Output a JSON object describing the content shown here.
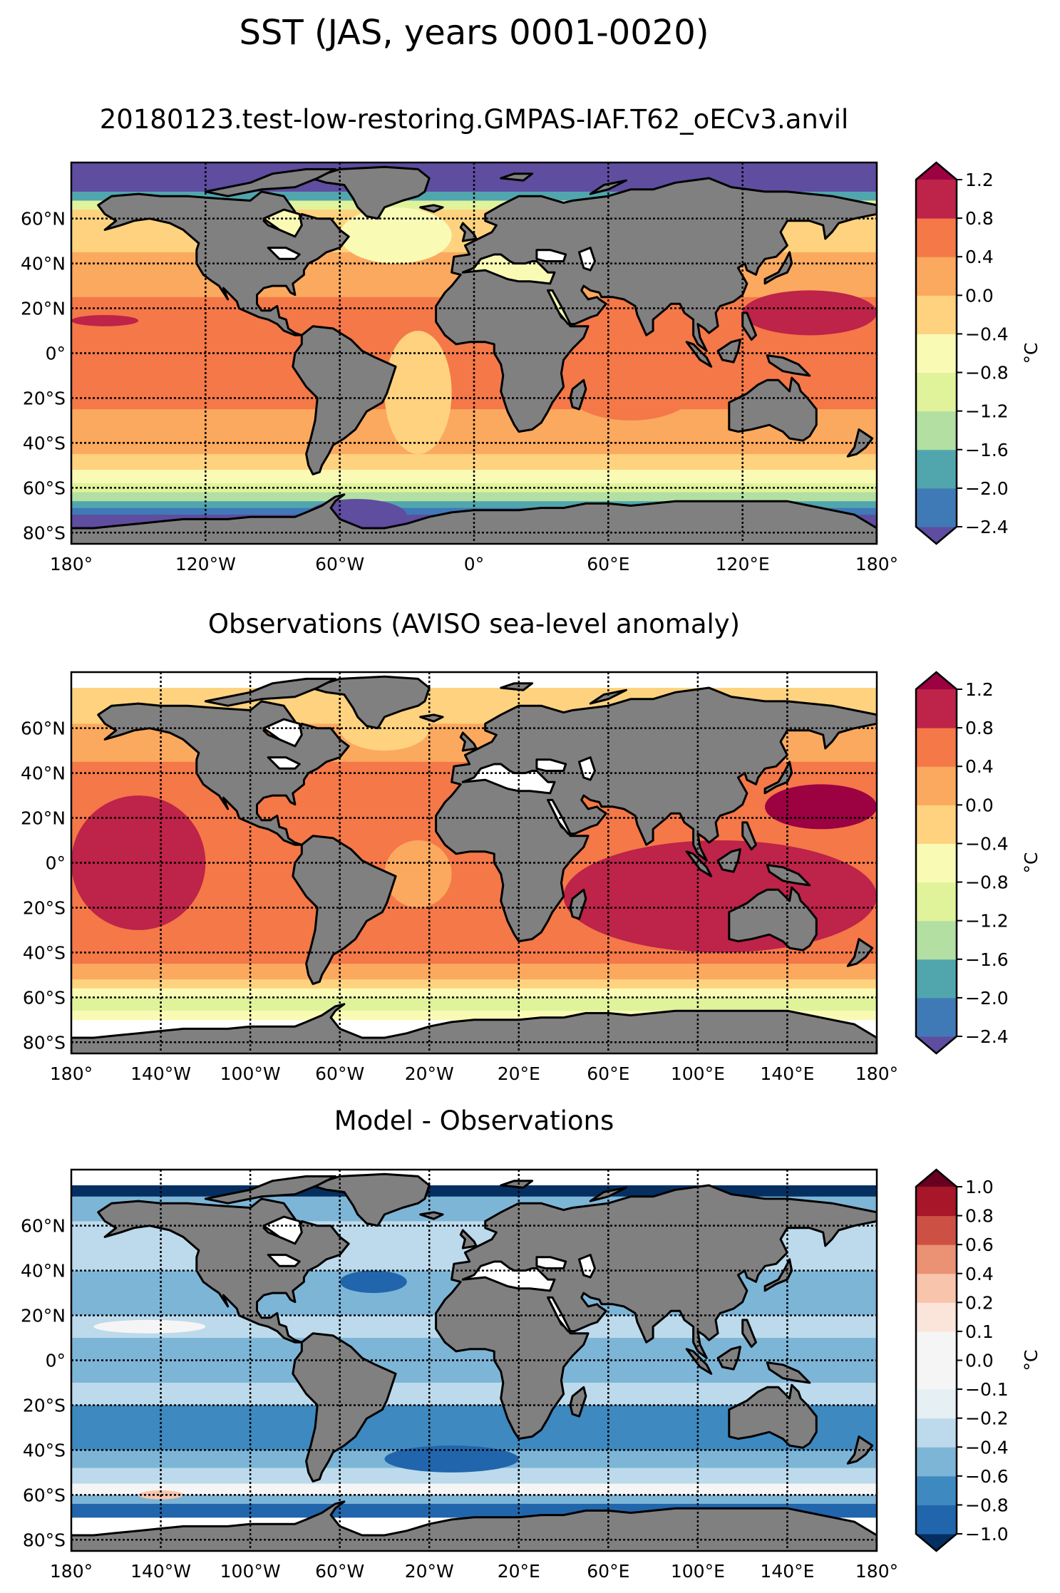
{
  "figure": {
    "title": "SST (JAS, years 0001-0020)"
  },
  "chart_data": [
    {
      "type": "heatmap",
      "panel": "model",
      "title": "20180123.test-low-restoring.GMPAS-IAF.T62_oECv3.anvil",
      "projection": "PlateCarree",
      "xlim": [
        -180,
        180
      ],
      "ylim": [
        -85,
        85
      ],
      "grid": true,
      "xticks": [
        -180,
        -120,
        -60,
        0,
        60,
        120,
        180
      ],
      "xtick_labels": [
        "180°",
        "120°W",
        "60°W",
        "0°",
        "60°E",
        "120°E",
        "180°"
      ],
      "yticks": [
        60,
        40,
        20,
        0,
        -20,
        -40,
        -60,
        -80
      ],
      "ytick_labels": [
        "60°N",
        "40°N",
        "20°N",
        "0°",
        "20°S",
        "40°S",
        "60°S",
        "80°S"
      ],
      "colorbar": {
        "label": "°C",
        "levels": [
          -2.4,
          -2.0,
          -1.6,
          -1.2,
          -0.8,
          -0.4,
          0.0,
          0.4,
          0.8,
          1.2
        ],
        "tick_labels": [
          "−2.4",
          "−2.0",
          "−1.6",
          "−1.2",
          "−0.8",
          "−0.4",
          "0.0",
          "0.4",
          "0.8",
          "1.2"
        ],
        "extend": "both",
        "colors": [
          "#3f7ab6",
          "#51a6ae",
          "#b3dfa2",
          "#e0f39b",
          "#f9fbb5",
          "#fed27f",
          "#fba95f",
          "#f47848",
          "#be2349"
        ],
        "under_color": "#5f4da0",
        "over_color": "#9c0142"
      },
      "zonal_bands": [
        {
          "lat": [
            72,
            85
          ],
          "value": -2.6
        },
        {
          "lat": [
            68,
            72
          ],
          "value": -1.8
        },
        {
          "lat": [
            64,
            68
          ],
          "value": -0.9
        },
        {
          "lat": [
            45,
            64
          ],
          "value": -0.2
        },
        {
          "lat": [
            25,
            45
          ],
          "value": 0.2
        },
        {
          "lat": [
            -25,
            25
          ],
          "value": 0.5
        },
        {
          "lat": [
            -45,
            -25
          ],
          "value": 0.2
        },
        {
          "lat": [
            -52,
            -45
          ],
          "value": -0.2
        },
        {
          "lat": [
            -58,
            -52
          ],
          "value": -0.6
        },
        {
          "lat": [
            -62,
            -58
          ],
          "value": -1.0
        },
        {
          "lat": [
            -66,
            -62
          ],
          "value": -1.4
        },
        {
          "lat": [
            -69,
            -66
          ],
          "value": -1.8
        },
        {
          "lat": [
            -72,
            -69
          ],
          "value": -2.2
        },
        {
          "lat": [
            -85,
            -72
          ],
          "value": -2.6
        }
      ],
      "features": [
        {
          "lon": [
            -180,
            -150
          ],
          "lat": [
            12,
            17
          ],
          "value": 0.9
        },
        {
          "lon": [
            120,
            180
          ],
          "lat": [
            8,
            28
          ],
          "value": 0.9
        },
        {
          "lon": [
            140,
            180
          ],
          "lat": [
            0,
            8
          ],
          "value": 0.6
        },
        {
          "lon": [
            40,
            100
          ],
          "lat": [
            -30,
            0
          ],
          "value": 0.5
        },
        {
          "lon": [
            -60,
            -10
          ],
          "lat": [
            40,
            65
          ],
          "value": -0.6
        },
        {
          "lon": [
            -40,
            -10
          ],
          "lat": [
            -45,
            10
          ],
          "value": -0.2
        },
        {
          "lon": [
            -75,
            -30
          ],
          "lat": [
            -80,
            -65
          ],
          "value": -2.6
        }
      ],
      "missing_color": "#ffffff"
    },
    {
      "type": "heatmap",
      "panel": "observations",
      "title": "Observations (AVISO sea-level anomaly)",
      "projection": "PlateCarree",
      "xlim": [
        -180,
        180
      ],
      "ylim": [
        -85,
        85
      ],
      "grid": true,
      "xticks": [
        -180,
        -140,
        -100,
        -60,
        -20,
        20,
        60,
        100,
        140,
        180
      ],
      "xtick_labels": [
        "180°",
        "140°W",
        "100°W",
        "60°W",
        "20°W",
        "20°E",
        "60°E",
        "100°E",
        "140°E",
        "180°"
      ],
      "yticks": [
        60,
        40,
        20,
        0,
        -20,
        -40,
        -60,
        -80
      ],
      "ytick_labels": [
        "60°N",
        "40°N",
        "20°N",
        "0°",
        "20°S",
        "40°S",
        "60°S",
        "80°S"
      ],
      "colorbar": {
        "label": "°C",
        "levels": [
          -2.4,
          -2.0,
          -1.6,
          -1.2,
          -0.8,
          -0.4,
          0.0,
          0.4,
          0.8,
          1.2
        ],
        "tick_labels": [
          "−2.4",
          "−2.0",
          "−1.6",
          "−1.2",
          "−0.8",
          "−0.4",
          "0.0",
          "0.4",
          "0.8",
          "1.2"
        ],
        "extend": "both",
        "colors": [
          "#3f7ab6",
          "#51a6ae",
          "#b3dfa2",
          "#e0f39b",
          "#f9fbb5",
          "#fed27f",
          "#fba95f",
          "#f47848",
          "#be2349"
        ],
        "under_color": "#5f4da0",
        "over_color": "#9c0142"
      },
      "zonal_bands": [
        {
          "lat": [
            78,
            85
          ],
          "value": null
        },
        {
          "lat": [
            62,
            78
          ],
          "value": -0.2
        },
        {
          "lat": [
            45,
            62
          ],
          "value": 0.2
        },
        {
          "lat": [
            35,
            45
          ],
          "value": 0.6
        },
        {
          "lat": [
            -35,
            35
          ],
          "value": 0.6
        },
        {
          "lat": [
            -45,
            -35
          ],
          "value": 0.6
        },
        {
          "lat": [
            -52,
            -45
          ],
          "value": 0.2
        },
        {
          "lat": [
            -56,
            -52
          ],
          "value": -0.2
        },
        {
          "lat": [
            -60,
            -56
          ],
          "value": -0.6
        },
        {
          "lat": [
            -66,
            -60
          ],
          "value": -1.0
        },
        {
          "lat": [
            -70,
            -66
          ],
          "value": -0.6
        },
        {
          "lat": [
            -85,
            -70
          ],
          "value": null
        }
      ],
      "features": [
        {
          "lon": [
            -180,
            -120
          ],
          "lat": [
            -30,
            30
          ],
          "value": 0.9
        },
        {
          "lon": [
            130,
            180
          ],
          "lat": [
            15,
            35
          ],
          "value": 1.3
        },
        {
          "lon": [
            40,
            180
          ],
          "lat": [
            -40,
            10
          ],
          "value": 0.9
        },
        {
          "lon": [
            -60,
            -20
          ],
          "lat": [
            -10,
            20
          ],
          "value": 0.6
        },
        {
          "lon": [
            -40,
            -10
          ],
          "lat": [
            -20,
            10
          ],
          "value": 0.2
        },
        {
          "lon": [
            -60,
            -20
          ],
          "lat": [
            50,
            70
          ],
          "value": -0.2
        }
      ],
      "missing_color": "#ffffff"
    },
    {
      "type": "heatmap",
      "panel": "bias",
      "title": "Model - Observations",
      "projection": "PlateCarree",
      "xlim": [
        -180,
        180
      ],
      "ylim": [
        -85,
        85
      ],
      "grid": true,
      "xticks": [
        -180,
        -140,
        -100,
        -60,
        -20,
        20,
        60,
        100,
        140,
        180
      ],
      "xtick_labels": [
        "180°",
        "140°W",
        "100°W",
        "60°W",
        "20°W",
        "20°E",
        "60°E",
        "100°E",
        "140°E",
        "180°"
      ],
      "yticks": [
        60,
        40,
        20,
        0,
        -20,
        -40,
        -60,
        -80
      ],
      "ytick_labels": [
        "60°N",
        "40°N",
        "20°N",
        "0°",
        "20°S",
        "40°S",
        "60°S",
        "80°S"
      ],
      "colorbar": {
        "label": "°C",
        "levels": [
          -1.0,
          -0.8,
          -0.6,
          -0.4,
          -0.2,
          -0.1,
          0.0,
          0.1,
          0.2,
          0.4,
          0.6,
          0.8,
          1.0
        ],
        "tick_labels": [
          "−1.0",
          "−0.8",
          "−0.6",
          "−0.4",
          "−0.2",
          "−0.1",
          "0.0",
          "0.1",
          "0.2",
          "0.4",
          "0.6",
          "0.8",
          "1.0"
        ],
        "extend": "both",
        "colors": [
          "#2166ac",
          "#3d89c0",
          "#7db5d7",
          "#bcdaeb",
          "#e6eff4",
          "#f5f5f5",
          "#f5f5f5",
          "#fbe5da",
          "#f8c4ab",
          "#ea9273",
          "#cd5045",
          "#a81629"
        ],
        "under_color": "#052f61",
        "over_color": "#68001f"
      },
      "zonal_bands": [
        {
          "lat": [
            78,
            85
          ],
          "value": null
        },
        {
          "lat": [
            73,
            78
          ],
          "value": -1.1
        },
        {
          "lat": [
            62,
            73
          ],
          "value": -0.5
        },
        {
          "lat": [
            40,
            62
          ],
          "value": -0.3
        },
        {
          "lat": [
            20,
            40
          ],
          "value": -0.6
        },
        {
          "lat": [
            10,
            20
          ],
          "value": -0.3
        },
        {
          "lat": [
            -10,
            10
          ],
          "value": -0.5
        },
        {
          "lat": [
            -20,
            -10
          ],
          "value": -0.3
        },
        {
          "lat": [
            -40,
            -20
          ],
          "value": -0.7
        },
        {
          "lat": [
            -48,
            -40
          ],
          "value": -0.5
        },
        {
          "lat": [
            -55,
            -48
          ],
          "value": -0.3
        },
        {
          "lat": [
            -60,
            -55
          ],
          "value": -0.05
        },
        {
          "lat": [
            -64,
            -60
          ],
          "value": -0.5
        },
        {
          "lat": [
            -70,
            -64
          ],
          "value": -0.9
        },
        {
          "lat": [
            -85,
            -70
          ],
          "value": null
        }
      ],
      "features": [
        {
          "lon": [
            -170,
            -120
          ],
          "lat": [
            12,
            18
          ],
          "value": -0.05
        },
        {
          "lon": [
            -150,
            -130
          ],
          "lat": [
            -62,
            -58
          ],
          "value": 0.3
        },
        {
          "lon": [
            -40,
            20
          ],
          "lat": [
            -50,
            -38
          ],
          "value": -0.9
        },
        {
          "lon": [
            -60,
            -30
          ],
          "lat": [
            30,
            40
          ],
          "value": -0.9
        }
      ],
      "missing_color": "#ffffff"
    }
  ],
  "land_color": "#808080",
  "coast_color": "#000000"
}
